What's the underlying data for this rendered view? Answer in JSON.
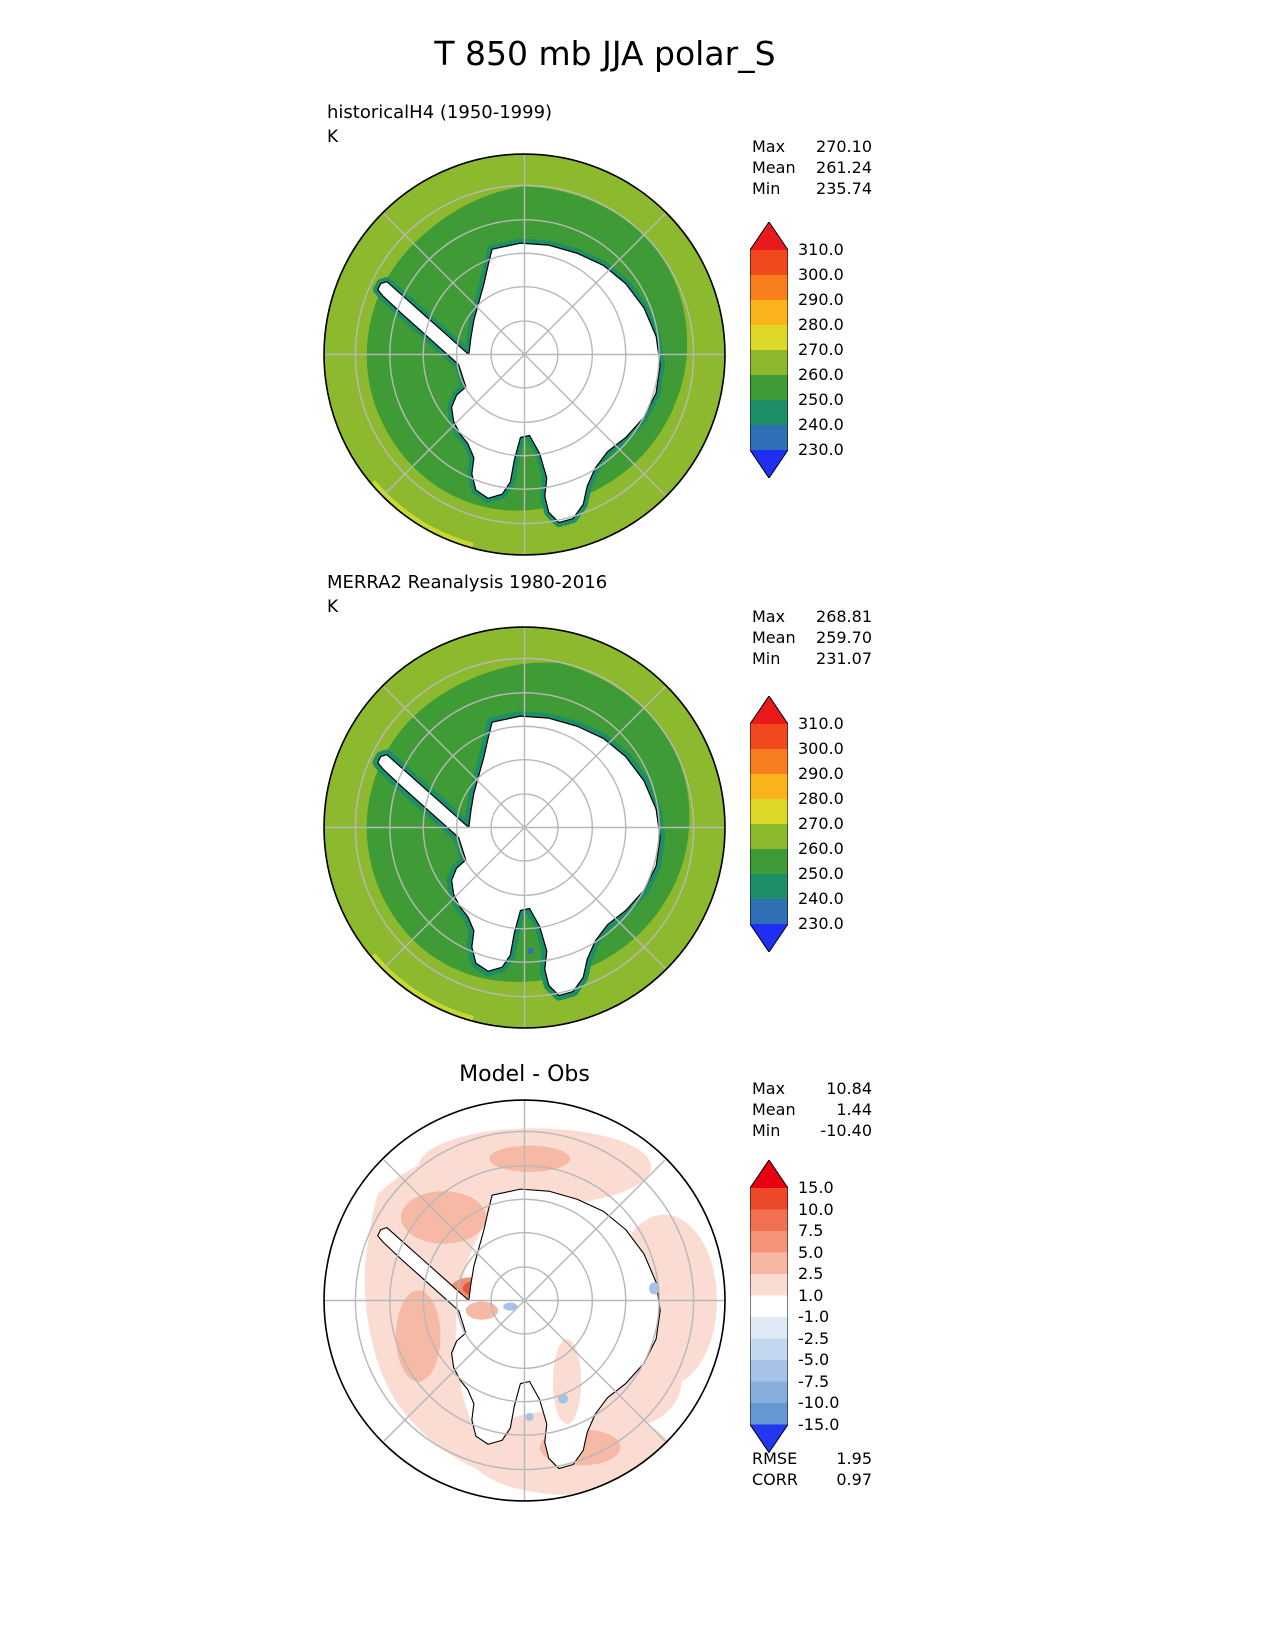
{
  "figure": {
    "title": "T 850 mb JJA polar_S"
  },
  "palette": {
    "background": "#ffffff",
    "t_outer_band": "#8cb92d",
    "t_inner_band": "#3e9b35",
    "t_coast_band": "#1d8f66",
    "t_cold_spot": "#2e6fb5",
    "t_rim_warm": "#c6d832",
    "masked_surface": "#ffffff",
    "graticule": "#b8b8b8",
    "coastline": "#000000",
    "diff_neutral": "#ffffff",
    "diff_pale": "#fbdcd2",
    "diff_light": "#f5b9a5",
    "diff_mid": "#ee8f74",
    "diff_strong": "#e05a43",
    "diff_blue": "#a5c3e7"
  },
  "panels": [
    {
      "id": "model",
      "label": "historicalH4 (1950-1999)",
      "units": "K",
      "stats": {
        "max_label": "Max",
        "max": "270.10",
        "mean_label": "Mean",
        "mean": "261.24",
        "min_label": "Min",
        "min": "235.74"
      },
      "colorbar": {
        "arrow_top": "#e81a1c",
        "arrow_bottom": "#1f2ff2",
        "segments": [
          "#f2481d",
          "#f97e1e",
          "#fbb31c",
          "#ded929",
          "#8cb92d",
          "#3e9b35",
          "#1d8f66",
          "#2e6fb5"
        ],
        "ticks": [
          "310.0",
          "300.0",
          "290.0",
          "280.0",
          "270.0",
          "260.0",
          "250.0",
          "240.0",
          "230.0"
        ]
      }
    },
    {
      "id": "obs",
      "label": "MERRA2 Reanalysis 1980-2016",
      "units": "K",
      "stats": {
        "max_label": "Max",
        "max": "268.81",
        "mean_label": "Mean",
        "mean": "259.70",
        "min_label": "Min",
        "min": "231.07"
      },
      "colorbar": {
        "arrow_top": "#e81a1c",
        "arrow_bottom": "#1f2ff2",
        "segments": [
          "#f2481d",
          "#f97e1e",
          "#fbb31c",
          "#ded929",
          "#8cb92d",
          "#3e9b35",
          "#1d8f66",
          "#2e6fb5"
        ],
        "ticks": [
          "310.0",
          "300.0",
          "290.0",
          "280.0",
          "270.0",
          "260.0",
          "250.0",
          "240.0",
          "230.0"
        ]
      }
    },
    {
      "id": "diff",
      "label": "Model - Obs",
      "units": "",
      "stats": {
        "max_label": "Max",
        "max": "10.84",
        "mean_label": "Mean",
        "mean": "1.44",
        "min_label": "Min",
        "min": "-10.40"
      },
      "colorbar": {
        "arrow_top": "#e60011",
        "arrow_bottom": "#2336f0",
        "segments": [
          "#ee482a",
          "#f27053",
          "#f5937a",
          "#f8b7a4",
          "#fbdcd2",
          "#ffffff",
          "#e0eaf7",
          "#c3d7f0",
          "#a5c3e7",
          "#86aedd",
          "#6697d2"
        ],
        "ticks": [
          "15.0",
          "10.0",
          "7.5",
          "5.0",
          "2.5",
          "1.0",
          "-1.0",
          "-2.5",
          "-5.0",
          "-7.5",
          "-10.0",
          "-15.0"
        ]
      },
      "metrics": {
        "rmse_label": "RMSE",
        "rmse": "1.95",
        "corr_label": "CORR",
        "corr": "0.97"
      }
    }
  ],
  "chart_data": [
    {
      "type": "heatmap",
      "title": "historicalH4 (1950-1999)",
      "variable": "T 850 mb",
      "season": "JJA",
      "projection": "polar_S",
      "units": "K",
      "contour_levels": [
        230,
        240,
        250,
        260,
        270,
        280,
        290,
        300,
        310
      ],
      "stats": {
        "max": 270.1,
        "mean": 261.24,
        "min": 235.74
      },
      "notes": "South polar stereographic map; ocean ring ~260-270 K, inner ring ~250-260 K, coastal fringe 240-250 K, Antarctic interior masked white"
    },
    {
      "type": "heatmap",
      "title": "MERRA2 Reanalysis 1980-2016",
      "variable": "T 850 mb",
      "season": "JJA",
      "projection": "polar_S",
      "units": "K",
      "contour_levels": [
        230,
        240,
        250,
        260,
        270,
        280,
        290,
        300,
        310
      ],
      "stats": {
        "max": 268.81,
        "mean": 259.7,
        "min": 231.07
      },
      "notes": "Same layout as model panel with slightly colder field"
    },
    {
      "type": "heatmap",
      "title": "Model - Obs",
      "variable": "T 850 mb difference",
      "season": "JJA",
      "projection": "polar_S",
      "units": "K",
      "contour_levels": [
        -15,
        -10,
        -7.5,
        -5,
        -2.5,
        -1,
        1,
        2.5,
        5,
        7.5,
        10,
        15
      ],
      "stats": {
        "max": 10.84,
        "mean": 1.44,
        "min": -10.4,
        "rmse": 1.95,
        "corr": 0.97
      },
      "notes": "Mostly +1 to +5 K warm bias ring around Antarctica; strong warm patch near Antarctic Peninsula; few small cold specks"
    }
  ]
}
